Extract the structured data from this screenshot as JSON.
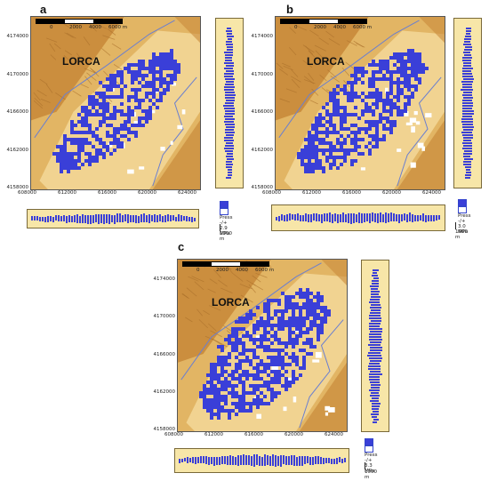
{
  "panels": [
    {
      "label": "a",
      "town": "LORCA",
      "y_ticks": [
        "4174000",
        "4170000",
        "4166000",
        "4162000",
        "4158000"
      ],
      "x_ticks": [
        "608000",
        "612000",
        "616000",
        "620000",
        "624000"
      ],
      "scale_labels": [
        "0",
        "2000",
        "4000",
        "6000 m"
      ],
      "legend_lines": [
        "Press",
        "-/+ 2.9 MPa"
      ],
      "vscale_label": "1000 m"
    },
    {
      "label": "b",
      "town": "LORCA",
      "y_ticks": [
        "4174000",
        "4170000",
        "4166000",
        "4162000",
        "4158000"
      ],
      "x_ticks": [
        "608000",
        "612000",
        "616000",
        "620000",
        "624000"
      ],
      "scale_labels": [
        "0",
        "2000",
        "4000",
        "6000 m"
      ],
      "legend_lines": [
        "Press",
        "-/+ 3.0 MPa"
      ],
      "vscale_label": "1000 m"
    },
    {
      "label": "c",
      "town": "LORCA",
      "y_ticks": [
        "4174000",
        "4170000",
        "4166000",
        "4162000",
        "4158000"
      ],
      "x_ticks": [
        "608000",
        "612000",
        "616000",
        "620000",
        "624000"
      ],
      "scale_labels": [
        "0",
        "2000",
        "4000",
        "6000 m"
      ],
      "legend_lines": [
        "Press",
        "-/+ 3.3 MPa"
      ],
      "vscale_label": "1000 m"
    }
  ],
  "colors": {
    "pressure_cells": "#3a3fd8",
    "terrain_light": "#f1d594",
    "terrain_mid": "#e2b564",
    "terrain_dark": "#c98a3a",
    "river": "#6a7fd0",
    "urban_white": "#ffffff",
    "profile_bg": "#f7e6a8"
  }
}
